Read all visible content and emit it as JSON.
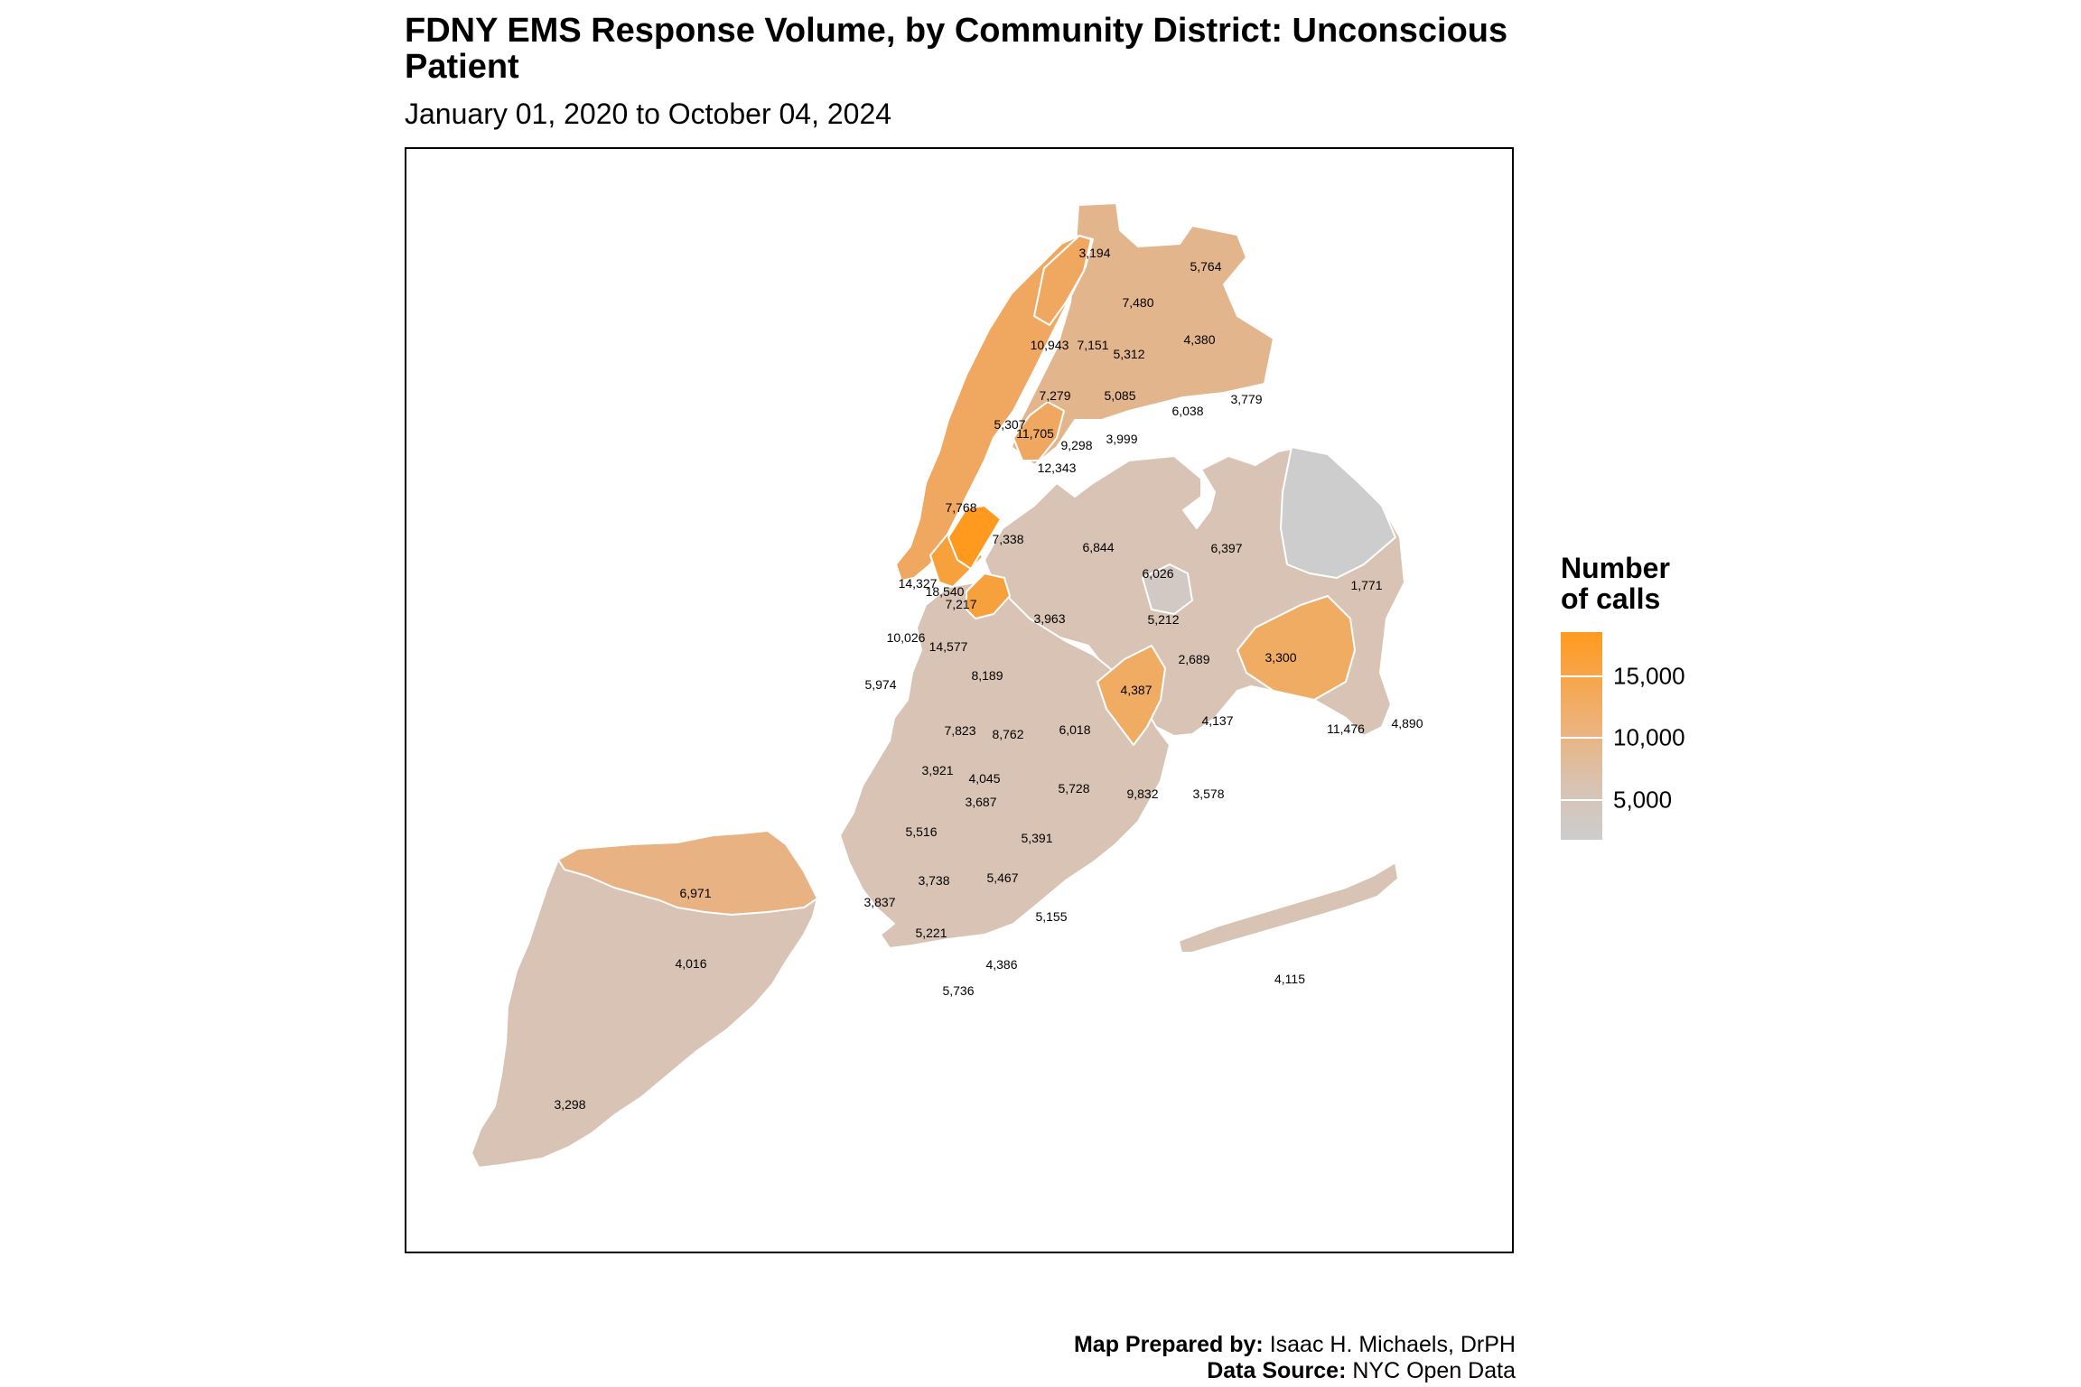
{
  "title": "FDNY EMS Response Volume, by Community District: Unconscious Patient",
  "subtitle": "January 01, 2020 to October 04, 2024",
  "legend": {
    "title_line1": "Number",
    "title_line2": "of calls",
    "ticks": [
      {
        "label": "15,000",
        "value": 15000
      },
      {
        "label": "10,000",
        "value": 10000
      },
      {
        "label": "5,000",
        "value": 5000
      }
    ],
    "range": [
      1771,
      18540
    ],
    "colors": {
      "low": "#CDCDCD",
      "mid": "#D8C3B4",
      "high": "#FF9A1F"
    }
  },
  "credits": {
    "prepared_label": "Map Prepared by:",
    "prepared_value": " Isaac H. Michaels, DrPH",
    "source_label": "Data Source:",
    "source_value": " NYC Open Data"
  },
  "districts": [
    {
      "label": "3,194",
      "value": 3194
    },
    {
      "label": "5,764",
      "value": 5764
    },
    {
      "label": "7,480",
      "value": 7480
    },
    {
      "label": "10,943",
      "value": 10943
    },
    {
      "label": "7,151",
      "value": 7151
    },
    {
      "label": "5,312",
      "value": 5312
    },
    {
      "label": "4,380",
      "value": 4380
    },
    {
      "label": "7,279",
      "value": 7279
    },
    {
      "label": "5,085",
      "value": 5085
    },
    {
      "label": "6,038",
      "value": 6038
    },
    {
      "label": "3,779",
      "value": 3779
    },
    {
      "label": "5,307",
      "value": 5307
    },
    {
      "label": "11,705",
      "value": 11705
    },
    {
      "label": "9,298",
      "value": 9298
    },
    {
      "label": "3,999",
      "value": 3999
    },
    {
      "label": "12,343",
      "value": 12343
    },
    {
      "label": "7,768",
      "value": 7768
    },
    {
      "label": "7,338",
      "value": 7338
    },
    {
      "label": "6,844",
      "value": 6844
    },
    {
      "label": "6,397",
      "value": 6397
    },
    {
      "label": "1,771",
      "value": 1771
    },
    {
      "label": "6,026",
      "value": 6026
    },
    {
      "label": "14,327",
      "value": 14327
    },
    {
      "label": "18,540",
      "value": 18540
    },
    {
      "label": "7,217",
      "value": 7217
    },
    {
      "label": "3,963",
      "value": 3963
    },
    {
      "label": "5,212",
      "value": 5212
    },
    {
      "label": "10,026",
      "value": 10026
    },
    {
      "label": "14,577",
      "value": 14577
    },
    {
      "label": "2,689",
      "value": 2689
    },
    {
      "label": "3,300",
      "value": 3300
    },
    {
      "label": "8,189",
      "value": 8189
    },
    {
      "label": "4,387",
      "value": 4387
    },
    {
      "label": "5,974",
      "value": 5974
    },
    {
      "label": "4,137",
      "value": 4137
    },
    {
      "label": "11,476",
      "value": 11476
    },
    {
      "label": "4,890",
      "value": 4890
    },
    {
      "label": "7,823",
      "value": 7823
    },
    {
      "label": "8,762",
      "value": 8762
    },
    {
      "label": "6,018",
      "value": 6018
    },
    {
      "label": "3,921",
      "value": 3921
    },
    {
      "label": "4,045",
      "value": 4045
    },
    {
      "label": "5,728",
      "value": 5728
    },
    {
      "label": "9,832",
      "value": 9832
    },
    {
      "label": "3,578",
      "value": 3578
    },
    {
      "label": "3,687",
      "value": 3687
    },
    {
      "label": "5,516",
      "value": 5516
    },
    {
      "label": "5,391",
      "value": 5391
    },
    {
      "label": "6,971",
      "value": 6971
    },
    {
      "label": "3,738",
      "value": 3738
    },
    {
      "label": "5,467",
      "value": 5467
    },
    {
      "label": "3,837",
      "value": 3837
    },
    {
      "label": "5,155",
      "value": 5155
    },
    {
      "label": "5,221",
      "value": 5221
    },
    {
      "label": "4,016",
      "value": 4016
    },
    {
      "label": "4,386",
      "value": 4386
    },
    {
      "label": "5,736",
      "value": 5736
    },
    {
      "label": "4,115",
      "value": 4115
    },
    {
      "label": "3,298",
      "value": 3298
    }
  ]
}
